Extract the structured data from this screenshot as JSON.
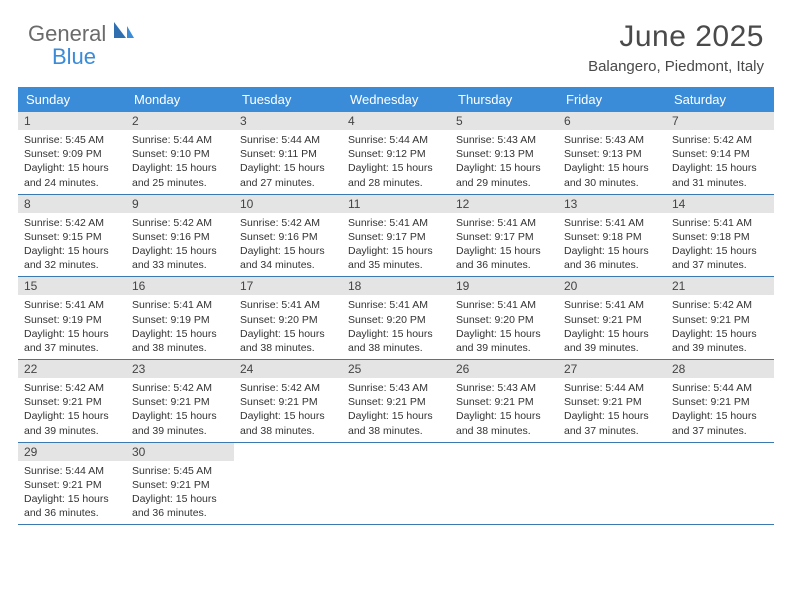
{
  "logo": {
    "text1": "General",
    "text2": "Blue"
  },
  "title": "June 2025",
  "location": "Balangero, Piedmont, Italy",
  "colors": {
    "header_bg": "#3a8bd8",
    "header_text": "#ffffff",
    "daynum_bg": "#e4e4e4",
    "row_border": "#3a7ab0",
    "logo_gray": "#6b6b6b",
    "logo_blue": "#3a8bd8"
  },
  "weekdays": [
    "Sunday",
    "Monday",
    "Tuesday",
    "Wednesday",
    "Thursday",
    "Friday",
    "Saturday"
  ],
  "weeks": [
    [
      {
        "n": "1",
        "sunrise": "5:45 AM",
        "sunset": "9:09 PM",
        "daylight": "15 hours and 24 minutes."
      },
      {
        "n": "2",
        "sunrise": "5:44 AM",
        "sunset": "9:10 PM",
        "daylight": "15 hours and 25 minutes."
      },
      {
        "n": "3",
        "sunrise": "5:44 AM",
        "sunset": "9:11 PM",
        "daylight": "15 hours and 27 minutes."
      },
      {
        "n": "4",
        "sunrise": "5:44 AM",
        "sunset": "9:12 PM",
        "daylight": "15 hours and 28 minutes."
      },
      {
        "n": "5",
        "sunrise": "5:43 AM",
        "sunset": "9:13 PM",
        "daylight": "15 hours and 29 minutes."
      },
      {
        "n": "6",
        "sunrise": "5:43 AM",
        "sunset": "9:13 PM",
        "daylight": "15 hours and 30 minutes."
      },
      {
        "n": "7",
        "sunrise": "5:42 AM",
        "sunset": "9:14 PM",
        "daylight": "15 hours and 31 minutes."
      }
    ],
    [
      {
        "n": "8",
        "sunrise": "5:42 AM",
        "sunset": "9:15 PM",
        "daylight": "15 hours and 32 minutes."
      },
      {
        "n": "9",
        "sunrise": "5:42 AM",
        "sunset": "9:16 PM",
        "daylight": "15 hours and 33 minutes."
      },
      {
        "n": "10",
        "sunrise": "5:42 AM",
        "sunset": "9:16 PM",
        "daylight": "15 hours and 34 minutes."
      },
      {
        "n": "11",
        "sunrise": "5:41 AM",
        "sunset": "9:17 PM",
        "daylight": "15 hours and 35 minutes."
      },
      {
        "n": "12",
        "sunrise": "5:41 AM",
        "sunset": "9:17 PM",
        "daylight": "15 hours and 36 minutes."
      },
      {
        "n": "13",
        "sunrise": "5:41 AM",
        "sunset": "9:18 PM",
        "daylight": "15 hours and 36 minutes."
      },
      {
        "n": "14",
        "sunrise": "5:41 AM",
        "sunset": "9:18 PM",
        "daylight": "15 hours and 37 minutes."
      }
    ],
    [
      {
        "n": "15",
        "sunrise": "5:41 AM",
        "sunset": "9:19 PM",
        "daylight": "15 hours and 37 minutes."
      },
      {
        "n": "16",
        "sunrise": "5:41 AM",
        "sunset": "9:19 PM",
        "daylight": "15 hours and 38 minutes."
      },
      {
        "n": "17",
        "sunrise": "5:41 AM",
        "sunset": "9:20 PM",
        "daylight": "15 hours and 38 minutes."
      },
      {
        "n": "18",
        "sunrise": "5:41 AM",
        "sunset": "9:20 PM",
        "daylight": "15 hours and 38 minutes."
      },
      {
        "n": "19",
        "sunrise": "5:41 AM",
        "sunset": "9:20 PM",
        "daylight": "15 hours and 39 minutes."
      },
      {
        "n": "20",
        "sunrise": "5:41 AM",
        "sunset": "9:21 PM",
        "daylight": "15 hours and 39 minutes."
      },
      {
        "n": "21",
        "sunrise": "5:42 AM",
        "sunset": "9:21 PM",
        "daylight": "15 hours and 39 minutes."
      }
    ],
    [
      {
        "n": "22",
        "sunrise": "5:42 AM",
        "sunset": "9:21 PM",
        "daylight": "15 hours and 39 minutes."
      },
      {
        "n": "23",
        "sunrise": "5:42 AM",
        "sunset": "9:21 PM",
        "daylight": "15 hours and 39 minutes."
      },
      {
        "n": "24",
        "sunrise": "5:42 AM",
        "sunset": "9:21 PM",
        "daylight": "15 hours and 38 minutes."
      },
      {
        "n": "25",
        "sunrise": "5:43 AM",
        "sunset": "9:21 PM",
        "daylight": "15 hours and 38 minutes."
      },
      {
        "n": "26",
        "sunrise": "5:43 AM",
        "sunset": "9:21 PM",
        "daylight": "15 hours and 38 minutes."
      },
      {
        "n": "27",
        "sunrise": "5:44 AM",
        "sunset": "9:21 PM",
        "daylight": "15 hours and 37 minutes."
      },
      {
        "n": "28",
        "sunrise": "5:44 AM",
        "sunset": "9:21 PM",
        "daylight": "15 hours and 37 minutes."
      }
    ],
    [
      {
        "n": "29",
        "sunrise": "5:44 AM",
        "sunset": "9:21 PM",
        "daylight": "15 hours and 36 minutes."
      },
      {
        "n": "30",
        "sunrise": "5:45 AM",
        "sunset": "9:21 PM",
        "daylight": "15 hours and 36 minutes."
      },
      null,
      null,
      null,
      null,
      null
    ]
  ],
  "labels": {
    "sunrise": "Sunrise:",
    "sunset": "Sunset:",
    "daylight": "Daylight:"
  }
}
